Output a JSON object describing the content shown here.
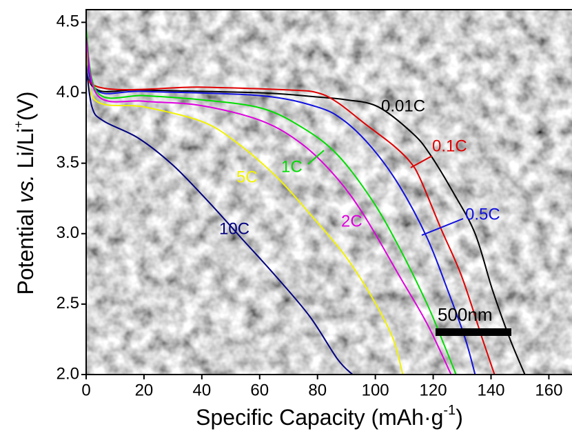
{
  "chart_data": {
    "type": "line",
    "xlabel": [
      "Specific Capacity (mAh·g",
      "-1",
      ")"
    ],
    "ylabel": [
      "Potential ",
      "vs.",
      " Li/Li",
      "+",
      "(V)"
    ],
    "xlim": [
      0,
      168
    ],
    "ylim": [
      2.0,
      4.59
    ],
    "xticks": [
      0,
      20,
      40,
      60,
      80,
      100,
      120,
      140,
      160
    ],
    "yticks": [
      {
        "value": 2,
        "label": "2.0"
      },
      2.5,
      {
        "value": 3,
        "label": "3.0"
      },
      3.5,
      {
        "value": 4,
        "label": "4.0"
      },
      4.5
    ],
    "scale_bar_label": "500nm",
    "series": [
      {
        "name": "0.01C",
        "color": "#000000",
        "x": [
          0,
          2,
          20,
          60,
          80,
          90,
          101,
          113,
          119,
          127,
          134.5,
          140.5,
          146.4,
          151.7
        ],
        "values": [
          4.5,
          4.05,
          4.02,
          4.0,
          3.97,
          3.95,
          3.9,
          3.71,
          3.56,
          3.29,
          3.0,
          2.6,
          2.26,
          2.0
        ]
      },
      {
        "name": "0.1C",
        "color": "#e00000",
        "x": [
          0,
          3,
          40,
          70,
          80,
          87,
          96.4,
          106,
          112,
          115.5,
          122.6,
          129.8,
          136.9,
          141.2
        ],
        "values": [
          4.4,
          4.05,
          4.04,
          4.02,
          4.0,
          3.93,
          3.78,
          3.63,
          3.51,
          3.39,
          3.04,
          2.7,
          2.26,
          2.0
        ]
      },
      {
        "name": "0.5C",
        "color": "#1010e0",
        "x": [
          0,
          3,
          20,
          60,
          79.8,
          89.3,
          98.8,
          108.3,
          117.9,
          125,
          131,
          134.5
        ],
        "values": [
          4.45,
          4.03,
          4.01,
          3.98,
          3.9,
          3.8,
          3.61,
          3.34,
          2.97,
          2.6,
          2.26,
          2.0
        ]
      },
      {
        "name": "1C",
        "color": "#00dd00",
        "x": [
          0,
          4,
          20,
          40,
          60.7,
          75,
          86.9,
          98.8,
          108.3,
          117.9,
          123.8,
          127.9
        ],
        "values": [
          4.45,
          4.0,
          3.98,
          3.95,
          3.89,
          3.75,
          3.56,
          3.24,
          2.9,
          2.5,
          2.21,
          2.0
        ]
      },
      {
        "name": "2C",
        "color": "#e000e0",
        "x": [
          0,
          4,
          20,
          39.5,
          60.7,
          75,
          86.9,
          96.4,
          108.3,
          117.9,
          126.2
        ],
        "values": [
          4.4,
          3.98,
          3.94,
          3.91,
          3.8,
          3.63,
          3.39,
          3.12,
          2.7,
          2.36,
          2.0
        ]
      },
      {
        "name": "5C",
        "color": "#f2f200",
        "x": [
          0,
          3,
          20,
          39.5,
          51.2,
          65.5,
          77.4,
          89.3,
          98.8,
          106,
          109.5
        ],
        "values": [
          4.3,
          3.95,
          3.9,
          3.8,
          3.66,
          3.41,
          3.14,
          2.85,
          2.55,
          2.26,
          2.0
        ]
      },
      {
        "name": "10C",
        "color": "#000080",
        "x": [
          0,
          2,
          6,
          17.9,
          29.8,
          41.7,
          53.6,
          65.5,
          77.4,
          86.9,
          92.1
        ],
        "values": [
          4.2,
          3.9,
          3.8,
          3.68,
          3.49,
          3.24,
          2.97,
          2.7,
          2.41,
          2.11,
          2.0
        ]
      }
    ]
  }
}
